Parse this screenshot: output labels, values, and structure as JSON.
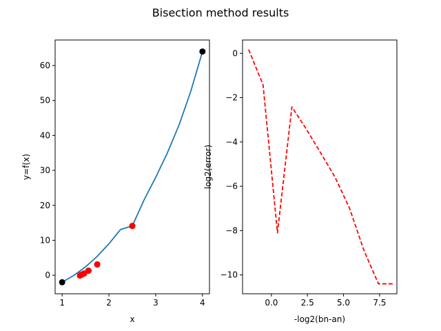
{
  "figure": {
    "title": "Bisection method results"
  },
  "chart_data": [
    {
      "type": "line",
      "title": "",
      "xlabel": "x",
      "ylabel": "y=f(x)",
      "xlim": [
        0.85,
        4.15
      ],
      "ylim": [
        -5.3,
        67.3
      ],
      "xticks": [
        1,
        2,
        3,
        4
      ],
      "yticks": [
        0,
        10,
        20,
        30,
        40,
        50,
        60
      ],
      "grid": false,
      "series": [
        {
          "style": "solid curve",
          "color": "#1f77b4",
          "x": [
            1.0,
            1.25,
            1.5,
            1.75,
            2.0,
            2.25,
            2.5,
            2.75,
            3.0,
            3.25,
            3.5,
            3.75,
            4.0
          ],
          "y": [
            -2.0,
            -0.05,
            2.4,
            5.4,
            9.0,
            13.1,
            14.1,
            21.5,
            28.0,
            35.0,
            43.0,
            52.6,
            64.0
          ]
        },
        {
          "style": "black markers",
          "color": "#000000",
          "x": [
            1.0,
            4.0,
            2.5,
            1.75,
            1.5625,
            1.47,
            1.42,
            1.4
          ],
          "y": [
            -2.0,
            64.0,
            14.1,
            3.1,
            1.3,
            0.5,
            0.2,
            0.05
          ]
        },
        {
          "style": "red markers",
          "color": "#ff0000",
          "x": [
            2.5,
            1.75,
            1.5625,
            1.47,
            1.42,
            1.39,
            1.38
          ],
          "y": [
            14.1,
            3.1,
            1.3,
            0.5,
            0.2,
            0.0,
            -0.1
          ]
        }
      ]
    },
    {
      "type": "line",
      "title": "",
      "xlabel": "-log2(bn-an)",
      "ylabel": "log2(error)",
      "xlim": [
        -2.0,
        8.7
      ],
      "ylim": [
        -10.85,
        0.6
      ],
      "xticks": [
        0.0,
        2.5,
        5.0,
        7.5
      ],
      "xtick_labels": [
        "0.0",
        "2.5",
        "5.0",
        "7.5"
      ],
      "yticks": [
        0,
        -2,
        -4,
        -6,
        -8,
        -10
      ],
      "ytick_labels": [
        "0",
        "−2",
        "−4",
        "−6",
        "−8",
        "−10"
      ],
      "grid": false,
      "series": [
        {
          "style": "dashed",
          "color": "#ff0000",
          "x": [
            -1.58,
            -0.58,
            0.42,
            1.42,
            2.42,
            3.42,
            4.42,
            5.42,
            6.42,
            7.42,
            8.42
          ],
          "y": [
            0.17,
            -1.42,
            -8.1,
            -2.42,
            -3.42,
            -4.5,
            -5.6,
            -7.0,
            -8.9,
            -10.4,
            -10.4
          ]
        }
      ]
    }
  ]
}
